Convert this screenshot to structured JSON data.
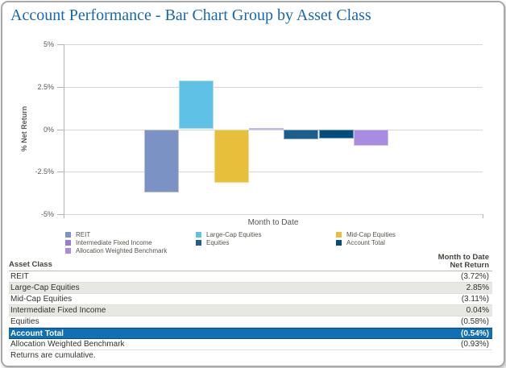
{
  "title": "Account Performance - Bar Chart Group by Asset Class",
  "chart_data": {
    "type": "bar",
    "title": "Account Performance - Bar Chart Group by Asset Class",
    "xlabel": "Month to Date",
    "ylabel": "% Net Return",
    "ylim": [
      -5,
      5
    ],
    "grid": true,
    "legend_position": "bottom",
    "yticks": [
      {
        "value": 5,
        "label": "5%"
      },
      {
        "value": 2.5,
        "label": "2.5%"
      },
      {
        "value": 0,
        "label": "0%"
      },
      {
        "value": -2.5,
        "label": "-2.5%"
      },
      {
        "value": -5,
        "label": "-5%"
      }
    ],
    "categories": [
      "Month to Date"
    ],
    "series": [
      {
        "name": "REIT",
        "value": -3.72,
        "color": "#7b93c4"
      },
      {
        "name": "Large-Cap Equities",
        "value": 2.85,
        "color": "#5fc1e6"
      },
      {
        "name": "Mid-Cap Equities",
        "value": -3.11,
        "color": "#e7bf3b"
      },
      {
        "name": "Intermediate Fixed Income",
        "value": 0.04,
        "color": "#947cdb"
      },
      {
        "name": "Equities",
        "value": -0.58,
        "color": "#1b5d8d"
      },
      {
        "name": "Account Total",
        "value": -0.54,
        "color": "#024d7e"
      },
      {
        "name": "Allocation Weighted Benchmark",
        "value": -0.93,
        "color": "#a78ce2"
      }
    ],
    "legend_columns": [
      [
        "REIT",
        "Intermediate Fixed Income",
        "Allocation Weighted Benchmark"
      ],
      [
        "Large-Cap Equities",
        "Equities"
      ],
      [
        "Mid-Cap Equities",
        "Account Total"
      ]
    ]
  },
  "table": {
    "col1_header": "Asset Class",
    "col2_header_line1": "Month to Date",
    "col2_header_line2": "Net Return",
    "rows": [
      {
        "asset_class": "REIT",
        "net_return": "(3.72%)",
        "shaded": false,
        "highlight": false
      },
      {
        "asset_class": "Large-Cap Equities",
        "net_return": "2.85%",
        "shaded": true,
        "highlight": false
      },
      {
        "asset_class": "Mid-Cap Equities",
        "net_return": "(3.11%)",
        "shaded": false,
        "highlight": false
      },
      {
        "asset_class": "Intermediate Fixed Income",
        "net_return": "0.04%",
        "shaded": true,
        "highlight": false
      },
      {
        "asset_class": "Equities",
        "net_return": "(0.58%)",
        "shaded": false,
        "highlight": false
      },
      {
        "asset_class": "Account Total",
        "net_return": "(0.54%)",
        "shaded": false,
        "highlight": true
      },
      {
        "asset_class": "Allocation Weighted Benchmark",
        "net_return": "(0.93%)",
        "shaded": false,
        "highlight": false
      }
    ],
    "footnote": "Returns are cumulative."
  },
  "colors": {
    "title_blue": "#1568b0",
    "highlight_row_bg": "#0f70b8",
    "highlight_row_border": "#0a4a80",
    "shaded_row_bg": "#e8e8e2",
    "gridline": "#d4d4d4",
    "axis": "#b3b3b3",
    "axis_text": "#595959"
  }
}
